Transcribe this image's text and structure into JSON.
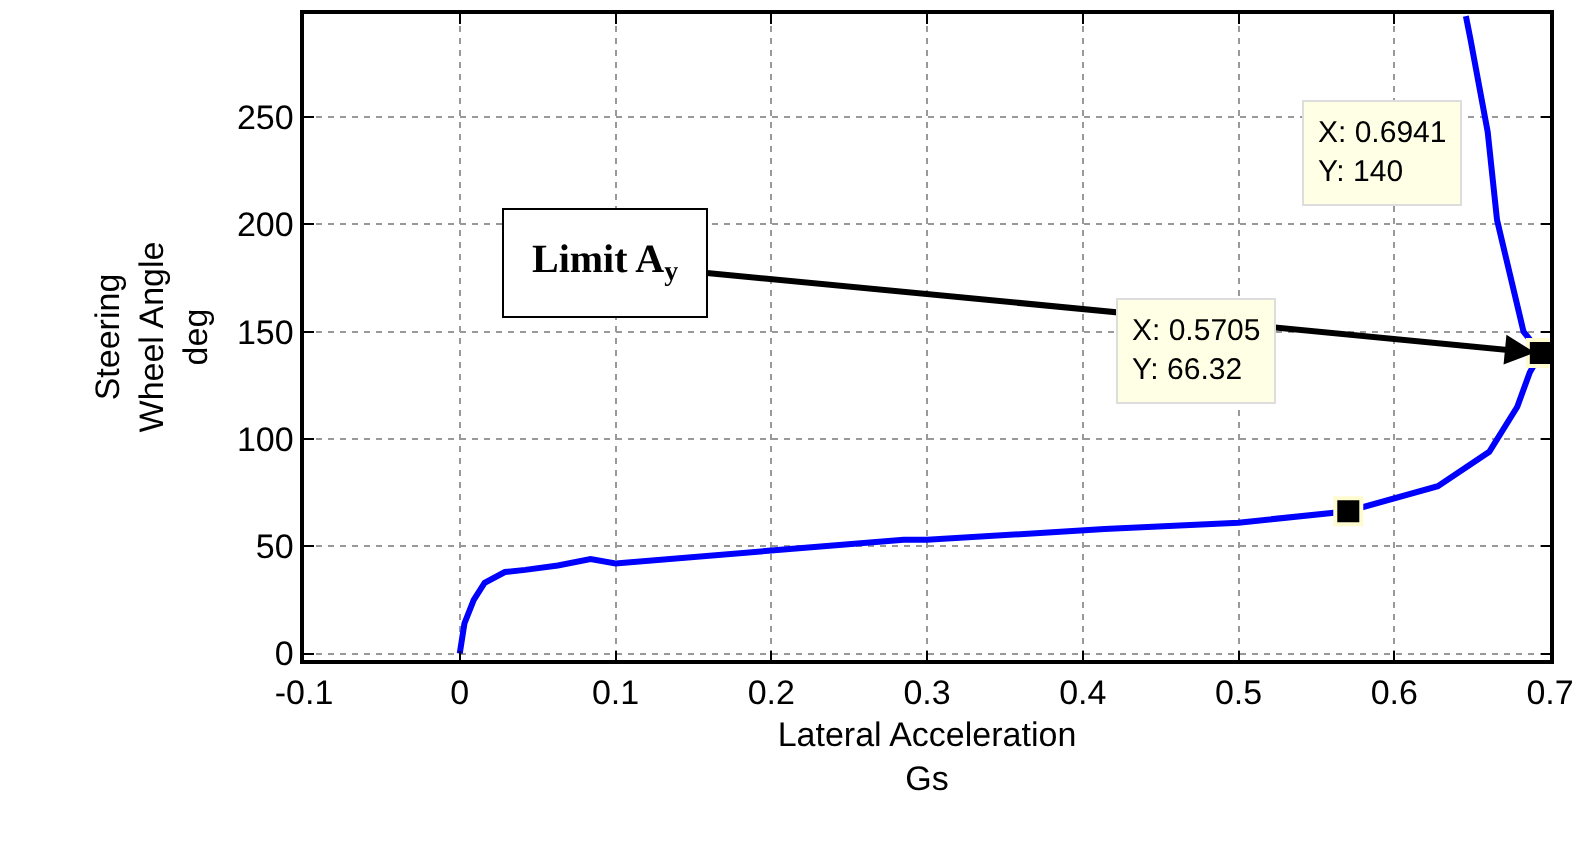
{
  "chart_data": {
    "type": "line",
    "xlabel": "Lateral Acceleration\nGs",
    "ylabel": "Steering\nWheel Angle\ndeg",
    "xlim": [
      -0.1,
      0.7
    ],
    "xticks": [
      -0.1,
      0,
      0.1,
      0.2,
      0.3,
      0.4,
      0.5,
      0.6,
      0.7
    ],
    "ylim": [
      -3,
      298
    ],
    "yticks": [
      0,
      50,
      100,
      150,
      200,
      250
    ],
    "grid": true,
    "series": [
      {
        "type": "line",
        "color": "#0000ff",
        "marker": "none",
        "line_style": "solid",
        "x": [
          0,
          0.003,
          0.009,
          0.016,
          0.029,
          0.042,
          0.063,
          0.084,
          0.1,
          0.2,
          0.285,
          0.3,
          0.414,
          0.5,
          0.5705,
          0.628,
          0.661,
          0.679,
          0.687,
          0.6941,
          0.683,
          0.666,
          0.66,
          0.649,
          0.646
        ],
        "values": [
          0,
          14,
          25,
          33,
          38,
          39,
          41,
          44,
          42,
          48,
          53,
          53,
          58,
          61,
          66.32,
          78,
          94,
          115,
          131,
          140,
          150,
          202,
          243,
          286,
          297
        ]
      },
      {
        "type": "scatter",
        "color": "#000000",
        "marker": "square",
        "x": [
          0.5705,
          0.6941
        ],
        "values": [
          66.32,
          140
        ]
      }
    ],
    "annotations": [
      {
        "text": "Limit A$_{y}$",
        "x": 0.6941,
        "y": 140
      },
      "X: 0.6941\nY: 140",
      "X: 0.5705\nY: 66.32"
    ]
  }
}
